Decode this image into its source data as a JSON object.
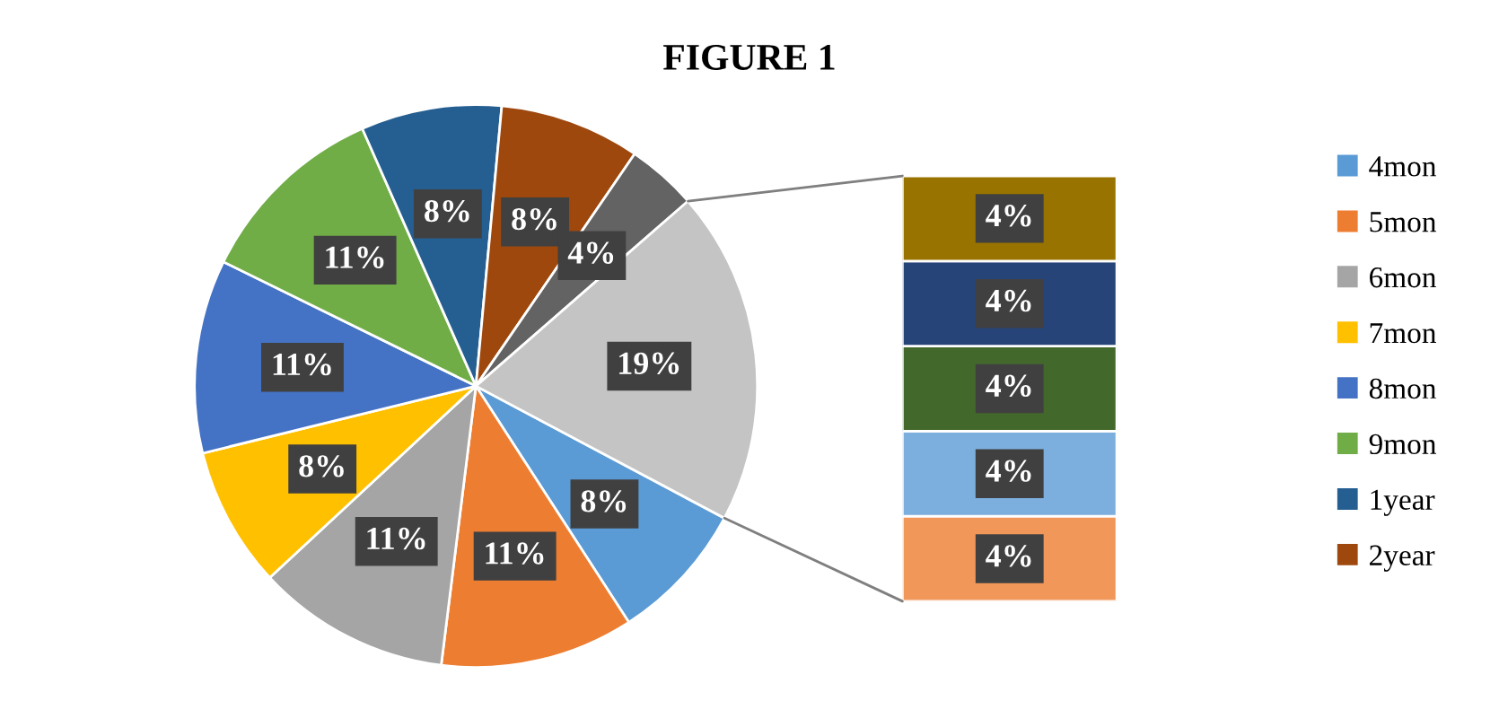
{
  "chart_data": [
    {
      "type": "pie",
      "title": "FIGURE 1",
      "categories": [
        "4mon",
        "5mon",
        "6mon",
        "7mon",
        "8mon",
        "9mon",
        "1year",
        "2year",
        null,
        null
      ],
      "values": [
        8,
        11,
        11,
        8,
        11,
        11,
        8,
        8,
        4,
        19
      ],
      "value_labels": [
        "8%",
        "11%",
        "11%",
        "8%",
        "11%",
        "11%",
        "8%",
        "8%",
        "4%",
        "19%"
      ],
      "colors": [
        "#5b9bd5",
        "#ed7d31",
        "#a5a5a5",
        "#ffc000",
        "#4472c4",
        "#70ad47",
        "#255e91",
        "#9e480e",
        "#636363",
        "#c4c4c4"
      ],
      "legend": "right"
    },
    {
      "type": "bar",
      "stacked": true,
      "categories": [
        null
      ],
      "tick_labels": false,
      "series": [
        {
          "color": "#f1975a",
          "values": [
            4
          ],
          "value_labels": [
            "4%"
          ]
        },
        {
          "color": "#7cafdd",
          "values": [
            4
          ],
          "value_labels": [
            "4%"
          ]
        },
        {
          "color": "#43682b",
          "values": [
            4
          ],
          "value_labels": [
            "4%"
          ]
        },
        {
          "color": "#264478",
          "values": [
            4
          ],
          "value_labels": [
            "4%"
          ]
        },
        {
          "color": "#997300",
          "values": [
            4
          ],
          "value_labels": [
            "4%"
          ]
        }
      ]
    }
  ]
}
